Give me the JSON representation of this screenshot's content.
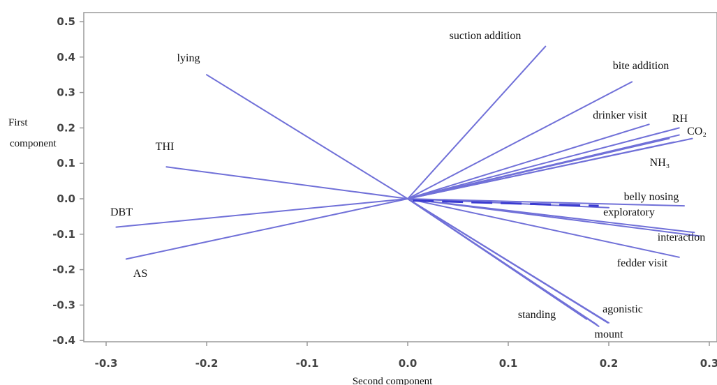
{
  "chart_data": {
    "type": "line",
    "subtype": "biplot-loadings",
    "xlabel": "Second component",
    "ylabel_lines": [
      "First",
      "component"
    ],
    "xlim": [
      -0.31,
      0.31
    ],
    "ylim": [
      -0.41,
      0.51
    ],
    "x_ticks": [
      -0.3,
      -0.2,
      -0.1,
      0.0,
      0.1,
      0.2,
      0.3
    ],
    "x_tick_labels": [
      "-0.3",
      "-0.2",
      "-0.1",
      "0.0",
      "0.1",
      "0.2",
      "0.3"
    ],
    "y_ticks": [
      0.5,
      0.4,
      0.3,
      0.2,
      0.1,
      0.0,
      -0.1,
      -0.2,
      -0.3,
      -0.4
    ],
    "y_tick_labels": [
      "0.5",
      "0.4",
      "0.3",
      "0.2",
      "0.1",
      "0.0",
      "-0.1",
      "-0.2",
      "-0.3",
      "-0.4"
    ],
    "grid": false,
    "line_color": "#7070d8",
    "vectors": [
      {
        "label": "suction addition",
        "x": 0.137,
        "y": 0.43
      },
      {
        "label": "lying",
        "x": -0.2,
        "y": 0.35
      },
      {
        "label": "bite addition",
        "x": 0.223,
        "y": 0.33
      },
      {
        "label": "drinker visit",
        "x": 0.24,
        "y": 0.21
      },
      {
        "label": "RH",
        "x": 0.27,
        "y": 0.2
      },
      {
        "label": "CO₂",
        "x": 0.283,
        "y": 0.17
      },
      {
        "label": "NH₃",
        "x": 0.265,
        "y": 0.16
      },
      {
        "label": "THI",
        "x": -0.24,
        "y": 0.09
      },
      {
        "label": "belly nosing",
        "x": 0.275,
        "y": -0.02
      },
      {
        "label": "exploratory",
        "x": 0.2,
        "y": -0.025
      },
      {
        "label": "interaction",
        "x": 0.29,
        "y": -0.105
      },
      {
        "label": "fedder visit",
        "x": 0.27,
        "y": -0.165
      },
      {
        "label": "DBT",
        "x": -0.29,
        "y": -0.08
      },
      {
        "label": "AS",
        "x": -0.28,
        "y": -0.17
      },
      {
        "label": "agonistic",
        "x": 0.2,
        "y": -0.35
      },
      {
        "label": "mount",
        "x": 0.19,
        "y": -0.36
      },
      {
        "label": "standing",
        "x": 0.178,
        "y": -0.34
      }
    ],
    "extra_lines": [
      {
        "x": 0.199,
        "y": -0.35
      },
      {
        "x": 0.188,
        "y": -0.355
      },
      {
        "x": 0.27,
        "y": 0.18
      },
      {
        "x": 0.26,
        "y": 0.17
      },
      {
        "x": 0.25,
        "y": 0.165
      },
      {
        "x": 0.285,
        "y": -0.095
      }
    ]
  }
}
